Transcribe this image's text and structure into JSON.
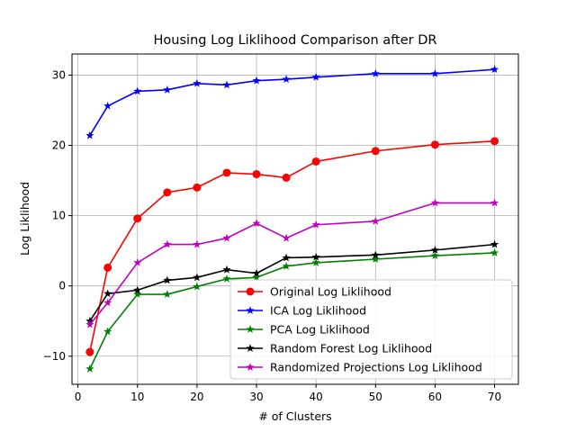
{
  "chart_data": {
    "type": "line",
    "title": "Housing Log Liklihood Comparison after DR",
    "xlabel": "# of Clusters",
    "ylabel": "Log Liklihood",
    "xlim": [
      -1,
      74
    ],
    "ylim": [
      -14,
      33
    ],
    "xticks": [
      0,
      10,
      20,
      30,
      40,
      50,
      60,
      70
    ],
    "yticks": [
      -10,
      0,
      10,
      20,
      30
    ],
    "grid": true,
    "legend_position": "lower-right",
    "x": [
      2,
      5,
      10,
      15,
      20,
      25,
      30,
      35,
      40,
      50,
      60,
      70
    ],
    "series": [
      {
        "name": "Original Log Liklihood",
        "color": "#ff0000",
        "marker": "circle",
        "values": [
          -9.4,
          2.6,
          9.6,
          13.3,
          14.0,
          16.1,
          15.9,
          15.4,
          17.7,
          19.2,
          20.1,
          20.6
        ]
      },
      {
        "name": "ICA Log Liklihood",
        "color": "#0000ff",
        "marker": "star",
        "values": [
          21.4,
          25.6,
          27.7,
          27.9,
          28.8,
          28.6,
          29.2,
          29.4,
          29.7,
          30.2,
          30.2,
          30.8
        ]
      },
      {
        "name": "PCA Log Liklihood",
        "color": "#008000",
        "marker": "star",
        "values": [
          -11.8,
          -6.5,
          -1.2,
          -1.2,
          -0.1,
          1.0,
          1.2,
          2.8,
          3.3,
          3.8,
          4.3,
          4.7
        ]
      },
      {
        "name": "Random Forest Log Liklihood",
        "color": "#000000",
        "marker": "star",
        "values": [
          -5.0,
          -1.1,
          -0.6,
          0.8,
          1.2,
          2.3,
          1.8,
          4.0,
          4.1,
          4.4,
          5.1,
          5.9
        ]
      },
      {
        "name": "Randomized Projections Log Liklihood",
        "color": "#bf00bf",
        "marker": "star",
        "values": [
          -5.5,
          -2.4,
          3.3,
          5.9,
          5.9,
          6.8,
          8.9,
          6.8,
          8.7,
          9.2,
          11.8,
          11.8
        ]
      }
    ]
  }
}
